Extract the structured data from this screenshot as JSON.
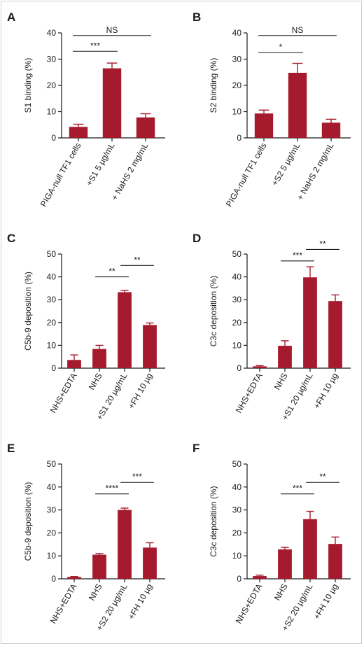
{
  "colors": {
    "bar": "#a51b2d",
    "axis": "#1a1a1a"
  },
  "chart_data": [
    {
      "panel": "A",
      "type": "bar",
      "ylabel": "S1 binding (%)",
      "ylim": [
        0,
        40
      ],
      "yticks": [
        0,
        10,
        20,
        30,
        40
      ],
      "categories": [
        "PIGA-null TF1 cells",
        "+S1 5 µg/mL",
        "+ NaHS 2 mg/mL"
      ],
      "values": [
        4.2,
        26.5,
        7.8
      ],
      "errors": [
        1.0,
        2.0,
        1.4
      ],
      "significance": [
        {
          "from": 0,
          "to": 1,
          "label": "***",
          "y": 33
        },
        {
          "from": 0,
          "to": 2,
          "label": "NS",
          "y": 39
        }
      ]
    },
    {
      "panel": "B",
      "type": "bar",
      "ylabel": "S2 binding (%)",
      "ylim": [
        0,
        40
      ],
      "yticks": [
        0,
        10,
        20,
        30,
        40
      ],
      "categories": [
        "PIGA-null TF1 cells",
        "+S2 5 µg/mL",
        "+ NaHS 2 mg/mL"
      ],
      "values": [
        9.3,
        24.8,
        5.8
      ],
      "errors": [
        1.3,
        3.6,
        1.3
      ],
      "significance": [
        {
          "from": 0,
          "to": 1,
          "label": "*",
          "y": 32.5
        },
        {
          "from": 0,
          "to": 2,
          "label": "NS",
          "y": 39
        }
      ]
    },
    {
      "panel": "C",
      "type": "bar",
      "ylabel": "C5b-9 deposition (%)",
      "ylim": [
        0,
        50
      ],
      "yticks": [
        0,
        10,
        20,
        30,
        40,
        50
      ],
      "categories": [
        "NHS+EDTA",
        "NHS",
        "+S1 20 µg/mL",
        "+FH 10 µg"
      ],
      "values": [
        3.6,
        8.4,
        33.3,
        18.9
      ],
      "errors": [
        2.2,
        1.6,
        0.8,
        0.9
      ],
      "significance": [
        {
          "from": 1,
          "to": 2,
          "label": "**",
          "y": 40
        },
        {
          "from": 2,
          "to": 3,
          "label": "**",
          "y": 45
        }
      ]
    },
    {
      "panel": "D",
      "type": "bar",
      "ylabel": "C3c deposition (%)",
      "ylim": [
        0,
        50
      ],
      "yticks": [
        0,
        10,
        20,
        30,
        40,
        50
      ],
      "categories": [
        "NHS+EDTA",
        "NHS",
        "+S1 20 µg/mL",
        "+FH 10 µg"
      ],
      "values": [
        0.8,
        9.8,
        39.8,
        29.4
      ],
      "errors": [
        0.3,
        2.2,
        4.6,
        2.7
      ],
      "significance": [
        {
          "from": 1,
          "to": 2,
          "label": "***",
          "y": 47
        },
        {
          "from": 2,
          "to": 3,
          "label": "**",
          "y": 52
        }
      ]
    },
    {
      "panel": "E",
      "type": "bar",
      "ylabel": "C5b-9 deposition (%)",
      "ylim": [
        0,
        50
      ],
      "yticks": [
        0,
        10,
        20,
        30,
        40,
        50
      ],
      "categories": [
        "NHS+EDTA",
        "NHS",
        "+S2 20 µg/mL",
        "+FH 10 µg"
      ],
      "values": [
        0.8,
        10.5,
        30.0,
        13.6
      ],
      "errors": [
        0.2,
        0.5,
        0.8,
        2.1
      ],
      "significance": [
        {
          "from": 1,
          "to": 2,
          "label": "****",
          "y": 37
        },
        {
          "from": 2,
          "to": 3,
          "label": "***",
          "y": 42
        }
      ]
    },
    {
      "panel": "F",
      "type": "bar",
      "ylabel": "C3c deposition (%)",
      "ylim": [
        0,
        50
      ],
      "yticks": [
        0,
        10,
        20,
        30,
        40,
        50
      ],
      "categories": [
        "NHS+EDTA",
        "NHS",
        "+S2 20 µg/mL",
        "+FH 10 µg"
      ],
      "values": [
        1.2,
        12.8,
        26.0,
        15.2
      ],
      "errors": [
        0.4,
        0.9,
        3.4,
        3.0
      ],
      "significance": [
        {
          "from": 1,
          "to": 2,
          "label": "***",
          "y": 37
        },
        {
          "from": 2,
          "to": 3,
          "label": "**",
          "y": 42
        }
      ]
    }
  ]
}
